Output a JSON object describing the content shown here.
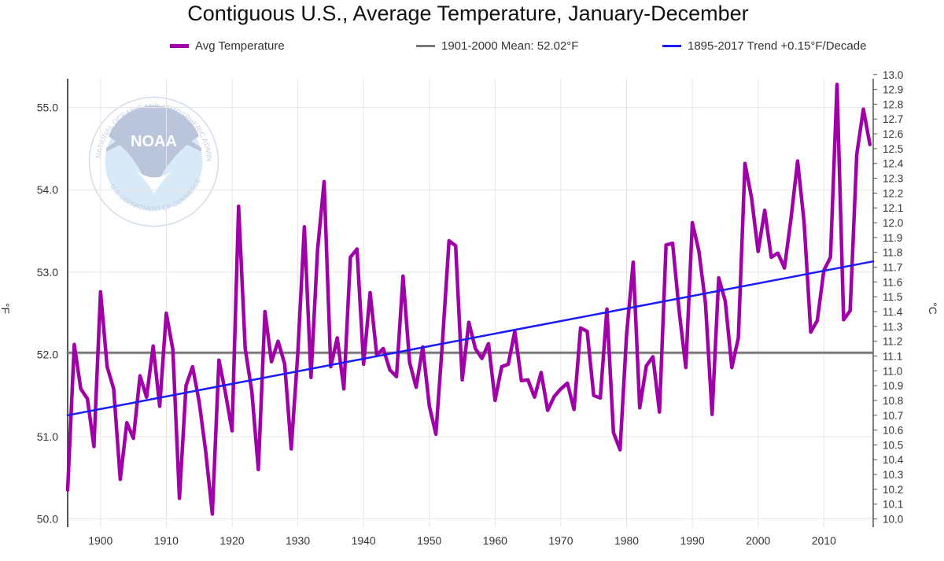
{
  "chart_data": {
    "type": "line",
    "title": "Contiguous U.S., Average Temperature, January-December",
    "ylabel": "°F",
    "y2label": "°C",
    "ylim": [
      49.9,
      55.35
    ],
    "xlim": [
      1895,
      2017.5
    ],
    "yticks": [
      "50.0",
      "51.0",
      "52.0",
      "53.0",
      "54.0",
      "55.0"
    ],
    "xticks": [
      "1900",
      "1910",
      "1920",
      "1930",
      "1940",
      "1950",
      "1960",
      "1970",
      "1980",
      "1990",
      "2000",
      "2010"
    ],
    "y2ticks": [
      "10.0",
      "10.1",
      "10.2",
      "10.3",
      "10.4",
      "10.5",
      "10.6",
      "10.7",
      "10.8",
      "10.9",
      "11.0",
      "11.1",
      "11.2",
      "11.3",
      "11.4",
      "11.5",
      "11.6",
      "11.7",
      "11.8",
      "11.9",
      "12.0",
      "12.1",
      "12.2",
      "12.3",
      "12.4",
      "12.5",
      "12.6",
      "12.7",
      "12.8",
      "12.9",
      "13.0"
    ],
    "grid": true,
    "legend_position": "top",
    "series": [
      {
        "name": "Avg Temperature",
        "color": "#a000a8",
        "x": [
          1895,
          1896,
          1897,
          1898,
          1899,
          1900,
          1901,
          1902,
          1903,
          1904,
          1905,
          1906,
          1907,
          1908,
          1909,
          1910,
          1911,
          1912,
          1913,
          1914,
          1915,
          1916,
          1917,
          1918,
          1919,
          1920,
          1921,
          1922,
          1923,
          1924,
          1925,
          1926,
          1927,
          1928,
          1929,
          1930,
          1931,
          1932,
          1933,
          1934,
          1935,
          1936,
          1937,
          1938,
          1939,
          1940,
          1941,
          1942,
          1943,
          1944,
          1945,
          1946,
          1947,
          1948,
          1949,
          1950,
          1951,
          1952,
          1953,
          1954,
          1955,
          1956,
          1957,
          1958,
          1959,
          1960,
          1961,
          1962,
          1963,
          1964,
          1965,
          1966,
          1967,
          1968,
          1969,
          1970,
          1971,
          1972,
          1973,
          1974,
          1975,
          1976,
          1977,
          1978,
          1979,
          1980,
          1981,
          1982,
          1983,
          1984,
          1985,
          1986,
          1987,
          1988,
          1989,
          1990,
          1991,
          1992,
          1993,
          1994,
          1995,
          1996,
          1997,
          1998,
          1999,
          2000,
          2001,
          2002,
          2003,
          2004,
          2005,
          2006,
          2007,
          2008,
          2009,
          2010,
          2011,
          2012,
          2013,
          2014,
          2015,
          2016,
          2017
        ],
        "values": [
          50.35,
          52.12,
          51.58,
          51.46,
          50.88,
          52.76,
          51.85,
          51.58,
          50.48,
          51.17,
          50.98,
          51.74,
          51.48,
          52.1,
          51.37,
          52.5,
          52.06,
          50.25,
          51.62,
          51.85,
          51.42,
          50.82,
          50.06,
          51.93,
          51.53,
          51.07,
          53.8,
          52.07,
          51.55,
          50.6,
          52.52,
          51.91,
          52.16,
          51.88,
          50.85,
          52.02,
          53.55,
          51.72,
          53.26,
          54.1,
          51.85,
          52.2,
          51.58,
          53.18,
          53.28,
          51.88,
          52.75,
          51.99,
          52.07,
          51.81,
          51.73,
          52.95,
          51.9,
          51.6,
          52.09,
          51.37,
          51.03,
          52.16,
          53.38,
          53.32,
          51.69,
          52.39,
          52.07,
          51.95,
          52.13,
          51.44,
          51.85,
          51.88,
          52.28,
          51.68,
          51.69,
          51.48,
          51.78,
          51.32,
          51.49,
          51.58,
          51.65,
          51.33,
          52.32,
          52.28,
          51.5,
          51.47,
          52.55,
          51.05,
          50.84,
          52.24,
          53.12,
          51.35,
          51.86,
          51.97,
          51.3,
          53.33,
          53.35,
          52.52,
          51.84,
          53.6,
          53.25,
          52.62,
          51.27,
          52.93,
          52.65,
          51.84,
          52.2,
          54.32,
          53.9,
          53.25,
          53.75,
          53.18,
          53.23,
          53.05,
          53.65,
          54.35,
          53.6,
          52.27,
          52.41,
          53.02,
          53.18,
          55.28,
          52.42,
          52.53,
          54.43,
          54.98,
          54.55
        ]
      },
      {
        "name": "1901-2000 Mean: 52.02°F",
        "color": "#7a7a7a",
        "x": [
          1895,
          2017.3
        ],
        "values": [
          52.02,
          52.02
        ]
      },
      {
        "name": "1895-2017 Trend +0.15°F/Decade",
        "color": "#1a1aff",
        "x": [
          1895,
          2017.5
        ],
        "values": [
          51.26,
          53.13
        ]
      }
    ]
  },
  "watermark": {
    "logo_text": "NOAA",
    "ring_text": "NATIONAL OCEANIC AND ATMOSPHERIC ADMINISTRATION",
    "bottom_text": "U.S. DEPARTMENT OF COMMERCE"
  }
}
